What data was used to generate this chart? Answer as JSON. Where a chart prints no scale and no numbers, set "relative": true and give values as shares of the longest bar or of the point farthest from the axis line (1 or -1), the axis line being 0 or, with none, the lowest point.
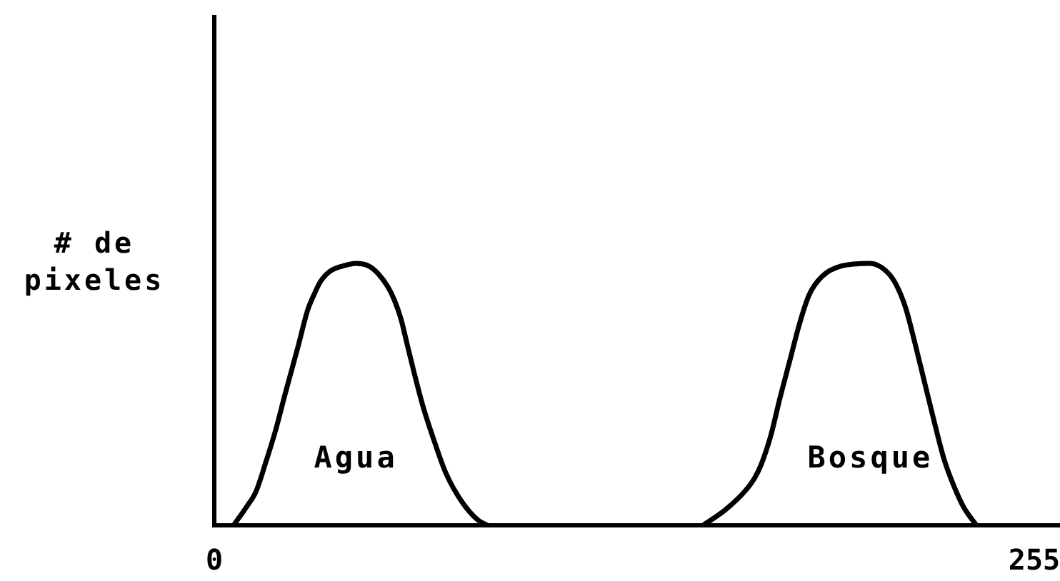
{
  "chart_data": {
    "type": "line",
    "ylabel": "# de pixeles",
    "series": [
      {
        "color": "#000000",
        "x": [
          6,
          10,
          13,
          16,
          19,
          22,
          26,
          29,
          31,
          33,
          36,
          40,
          44,
          48,
          51,
          54,
          56,
          58,
          60,
          62,
          65,
          69,
          72,
          77,
          82,
          85
        ],
        "values": [
          0,
          0.07,
          0.13,
          0.24,
          0.36,
          0.5,
          0.68,
          0.82,
          0.88,
          0.93,
          0.97,
          0.99,
          1,
          0.99,
          0.96,
          0.91,
          0.86,
          0.79,
          0.69,
          0.59,
          0.45,
          0.3,
          0.2,
          0.09,
          0.02,
          0
        ]
      },
      {
        "color": "#000000",
        "x": [
          152,
          159,
          165,
          168,
          170,
          173,
          176,
          179,
          182,
          185,
          189,
          195,
          204,
          209,
          212,
          215,
          218,
          221,
          224,
          227,
          230,
          233,
          237
        ],
        "values": [
          0,
          0.06,
          0.13,
          0.18,
          0.23,
          0.34,
          0.49,
          0.63,
          0.77,
          0.88,
          0.95,
          0.99,
          1,
          0.97,
          0.92,
          0.83,
          0.69,
          0.54,
          0.39,
          0.25,
          0.15,
          0.07,
          0
        ]
      }
    ],
    "xlim": [
      0,
      263
    ],
    "xticks": [
      0,
      255
    ],
    "relative": true,
    "grid": false,
    "legend": false,
    "marker": "none",
    "line_style": "solid",
    "annotations": [
      "Agua",
      "Bosque"
    ]
  }
}
